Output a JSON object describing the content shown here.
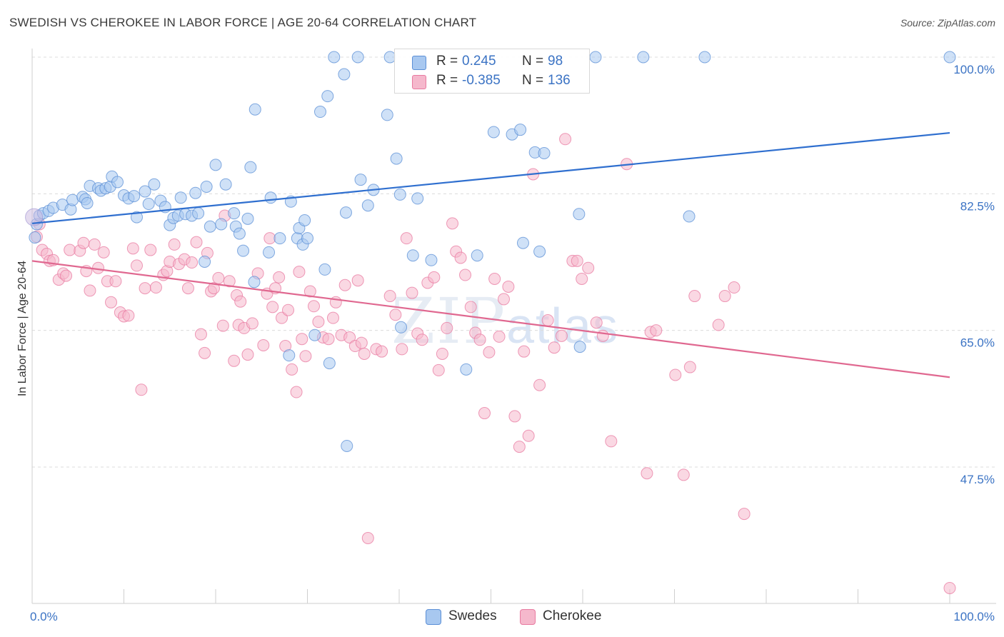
{
  "header": {
    "title": "SWEDISH VS CHEROKEE IN LABOR FORCE | AGE 20-64 CORRELATION CHART",
    "source": "Source: ZipAtlas.com"
  },
  "watermark": {
    "main": "ZIP",
    "sub": "atlas"
  },
  "legend": {
    "rows": [
      {
        "r_label": "R =",
        "r_value": "0.245",
        "n_label": "N =",
        "n_value": "98",
        "color": "#a8c8f0"
      },
      {
        "r_label": "R =",
        "r_value": "-0.385",
        "n_label": "N =",
        "n_value": "136",
        "color": "#f5b8cc"
      }
    ]
  },
  "bottom_legend": [
    {
      "label": "Swedes",
      "color": "#a8c8f0"
    },
    {
      "label": "Cherokee",
      "color": "#f5b8cc"
    }
  ],
  "chart_data": {
    "type": "scatter",
    "title": "SWEDISH VS CHEROKEE IN LABOR FORCE | AGE 20-64 CORRELATION CHART",
    "xlabel": "",
    "ylabel": "In Labor Force | Age 20-64",
    "xlim": [
      0,
      100
    ],
    "ylim": [
      29,
      100.5
    ],
    "x_tick_labels": [
      {
        "value": 0,
        "label": "0.0%"
      },
      {
        "value": 100,
        "label": "100.0%"
      }
    ],
    "y_tick_labels": [
      {
        "value": 100,
        "label": "100.0%"
      },
      {
        "value": 82.5,
        "label": "82.5%"
      },
      {
        "value": 65,
        "label": "65.0%"
      },
      {
        "value": 47.5,
        "label": "47.5%"
      }
    ],
    "grid": true,
    "legend_position": "top-center",
    "series": [
      {
        "name": "Swedes",
        "color": "#a8c8f0",
        "stroke": "#5b8fd6",
        "trend": {
          "x": [
            0,
            100
          ],
          "y": [
            78.7,
            90.3
          ],
          "color": "#2f6fcf"
        },
        "points": [
          [
            0.3,
            76.9
          ],
          [
            0.5,
            78.6
          ],
          [
            0.8,
            79.7
          ],
          [
            1.2,
            80.0
          ],
          [
            1.8,
            80.3
          ],
          [
            2.3,
            80.7
          ],
          [
            3.3,
            81.1
          ],
          [
            4.2,
            80.5
          ],
          [
            4.4,
            81.7
          ],
          [
            5.5,
            82.1
          ],
          [
            5.8,
            81.8
          ],
          [
            6.0,
            81.3
          ],
          [
            6.3,
            83.5
          ],
          [
            7.2,
            83.2
          ],
          [
            7.5,
            82.9
          ],
          [
            8.0,
            83.2
          ],
          [
            8.5,
            83.4
          ],
          [
            8.7,
            84.7
          ],
          [
            9.3,
            84.0
          ],
          [
            10.0,
            82.3
          ],
          [
            10.5,
            81.9
          ],
          [
            11.1,
            82.2
          ],
          [
            11.4,
            79.5
          ],
          [
            12.3,
            82.8
          ],
          [
            12.7,
            81.2
          ],
          [
            13.3,
            83.7
          ],
          [
            14.0,
            81.6
          ],
          [
            14.5,
            80.8
          ],
          [
            15.0,
            78.5
          ],
          [
            15.4,
            79.4
          ],
          [
            15.9,
            79.7
          ],
          [
            16.2,
            82.0
          ],
          [
            16.7,
            79.9
          ],
          [
            17.4,
            79.7
          ],
          [
            17.8,
            82.6
          ],
          [
            18.1,
            80.0
          ],
          [
            18.8,
            73.8
          ],
          [
            19.0,
            83.4
          ],
          [
            19.4,
            78.3
          ],
          [
            20.0,
            86.2
          ],
          [
            20.6,
            78.6
          ],
          [
            21.1,
            83.7
          ],
          [
            22.0,
            80.0
          ],
          [
            22.2,
            78.3
          ],
          [
            22.6,
            77.4
          ],
          [
            23.0,
            75.2
          ],
          [
            23.5,
            79.3
          ],
          [
            23.8,
            85.9
          ],
          [
            24.3,
            93.3
          ],
          [
            24.2,
            71.2
          ],
          [
            25.8,
            75.0
          ],
          [
            26.0,
            82.0
          ],
          [
            27.0,
            76.8
          ],
          [
            28.0,
            61.8
          ],
          [
            28.2,
            81.5
          ],
          [
            28.9,
            76.8
          ],
          [
            29.1,
            78.1
          ],
          [
            29.5,
            76.0
          ],
          [
            29.7,
            79.1
          ],
          [
            30.0,
            76.8
          ],
          [
            30.8,
            64.4
          ],
          [
            31.4,
            93.0
          ],
          [
            31.9,
            72.8
          ],
          [
            32.2,
            95.0
          ],
          [
            32.4,
            60.8
          ],
          [
            32.9,
            100.0
          ],
          [
            34.0,
            97.8
          ],
          [
            34.2,
            80.1
          ],
          [
            34.3,
            50.2
          ],
          [
            35.5,
            100.0
          ],
          [
            35.8,
            84.3
          ],
          [
            36.6,
            81.0
          ],
          [
            37.2,
            83.0
          ],
          [
            38.7,
            92.6
          ],
          [
            39.0,
            100.0
          ],
          [
            39.7,
            87.0
          ],
          [
            40.1,
            82.4
          ],
          [
            40.2,
            65.4
          ],
          [
            41.5,
            74.6
          ],
          [
            42.0,
            81.9
          ],
          [
            43.5,
            74.0
          ],
          [
            47.3,
            60.0
          ],
          [
            48.5,
            74.6
          ],
          [
            50.3,
            90.4
          ],
          [
            52.3,
            90.1
          ],
          [
            53.2,
            90.7
          ],
          [
            53.5,
            76.2
          ],
          [
            54.8,
            87.8
          ],
          [
            55.3,
            75.1
          ],
          [
            55.8,
            87.7
          ],
          [
            59.6,
            79.9
          ],
          [
            59.7,
            62.9
          ],
          [
            61.4,
            100.0
          ],
          [
            66.6,
            100.0
          ],
          [
            71.6,
            79.6
          ],
          [
            73.3,
            100.0
          ],
          [
            100,
            100.0
          ]
        ]
      },
      {
        "name": "Cherokee",
        "color": "#f5b8cc",
        "stroke": "#e87aa0",
        "trend": {
          "x": [
            0,
            100
          ],
          "y": [
            73.9,
            59.0
          ],
          "color": "#e06890"
        },
        "points": [
          [
            0.5,
            77.0
          ],
          [
            0.8,
            78.6
          ],
          [
            1.1,
            75.3
          ],
          [
            1.6,
            74.8
          ],
          [
            1.9,
            73.9
          ],
          [
            2.3,
            74.0
          ],
          [
            2.9,
            71.5
          ],
          [
            3.4,
            72.3
          ],
          [
            3.7,
            72.0
          ],
          [
            4.1,
            75.3
          ],
          [
            5.2,
            75.2
          ],
          [
            5.6,
            76.2
          ],
          [
            5.9,
            72.6
          ],
          [
            6.3,
            70.1
          ],
          [
            6.8,
            76.0
          ],
          [
            7.2,
            73.0
          ],
          [
            7.8,
            75.0
          ],
          [
            8.2,
            71.3
          ],
          [
            8.6,
            68.6
          ],
          [
            9.1,
            71.3
          ],
          [
            9.6,
            67.3
          ],
          [
            10.0,
            66.8
          ],
          [
            10.5,
            66.9
          ],
          [
            11.0,
            75.5
          ],
          [
            11.4,
            73.3
          ],
          [
            11.9,
            57.4
          ],
          [
            12.3,
            70.4
          ],
          [
            12.9,
            75.3
          ],
          [
            13.5,
            70.5
          ],
          [
            14.3,
            72.1
          ],
          [
            14.7,
            72.6
          ],
          [
            15.0,
            73.8
          ],
          [
            15.5,
            76.0
          ],
          [
            16.0,
            73.5
          ],
          [
            16.6,
            74.1
          ],
          [
            17.0,
            70.4
          ],
          [
            17.4,
            73.7
          ],
          [
            17.9,
            76.3
          ],
          [
            18.4,
            64.5
          ],
          [
            18.8,
            62.1
          ],
          [
            19.1,
            74.9
          ],
          [
            19.5,
            70.0
          ],
          [
            19.8,
            70.4
          ],
          [
            20.3,
            71.7
          ],
          [
            20.8,
            65.6
          ],
          [
            21.0,
            79.7
          ],
          [
            21.5,
            71.3
          ],
          [
            22.0,
            61.1
          ],
          [
            22.3,
            69.5
          ],
          [
            22.5,
            65.7
          ],
          [
            22.7,
            68.7
          ],
          [
            23.1,
            65.3
          ],
          [
            23.5,
            61.9
          ],
          [
            24.0,
            65.9
          ],
          [
            24.6,
            72.3
          ],
          [
            25.2,
            63.1
          ],
          [
            25.6,
            69.7
          ],
          [
            25.9,
            76.8
          ],
          [
            26.2,
            68.0
          ],
          [
            26.5,
            70.4
          ],
          [
            26.9,
            71.8
          ],
          [
            27.2,
            66.6
          ],
          [
            27.6,
            63.0
          ],
          [
            27.9,
            67.6
          ],
          [
            28.3,
            60.0
          ],
          [
            28.8,
            57.1
          ],
          [
            29.1,
            72.5
          ],
          [
            29.4,
            63.9
          ],
          [
            29.8,
            61.7
          ],
          [
            30.3,
            70.0
          ],
          [
            30.7,
            68.1
          ],
          [
            31.2,
            66.1
          ],
          [
            31.7,
            64.1
          ],
          [
            32.3,
            63.9
          ],
          [
            32.8,
            66.6
          ],
          [
            33.1,
            68.6
          ],
          [
            33.7,
            64.4
          ],
          [
            34.1,
            70.8
          ],
          [
            34.6,
            64.1
          ],
          [
            35.2,
            63.0
          ],
          [
            35.5,
            71.4
          ],
          [
            35.9,
            63.4
          ],
          [
            36.2,
            62.0
          ],
          [
            36.6,
            38.4
          ],
          [
            37.5,
            62.6
          ],
          [
            38.1,
            62.3
          ],
          [
            39.0,
            69.4
          ],
          [
            39.6,
            67.0
          ],
          [
            40.3,
            62.6
          ],
          [
            40.8,
            76.8
          ],
          [
            41.4,
            69.8
          ],
          [
            42.0,
            64.6
          ],
          [
            42.5,
            63.8
          ],
          [
            43.1,
            71.1
          ],
          [
            43.8,
            71.8
          ],
          [
            44.3,
            59.9
          ],
          [
            44.7,
            62.0
          ],
          [
            45.2,
            65.3
          ],
          [
            45.8,
            78.7
          ],
          [
            46.2,
            75.1
          ],
          [
            46.7,
            74.3
          ],
          [
            47.2,
            72.1
          ],
          [
            47.8,
            68.0
          ],
          [
            48.3,
            64.7
          ],
          [
            48.8,
            63.8
          ],
          [
            49.3,
            54.4
          ],
          [
            49.8,
            62.2
          ],
          [
            50.4,
            71.6
          ],
          [
            50.9,
            64.2
          ],
          [
            51.4,
            69.0
          ],
          [
            51.9,
            70.6
          ],
          [
            52.6,
            54.0
          ],
          [
            53.1,
            50.1
          ],
          [
            53.6,
            62.3
          ],
          [
            54.1,
            51.5
          ],
          [
            54.6,
            85.0
          ],
          [
            55.3,
            58.0
          ],
          [
            56.2,
            66.3
          ],
          [
            56.9,
            62.8
          ],
          [
            57.7,
            64.3
          ],
          [
            58.1,
            89.5
          ],
          [
            58.9,
            73.9
          ],
          [
            59.4,
            73.9
          ],
          [
            59.9,
            71.6
          ],
          [
            60.6,
            73.0
          ],
          [
            61.5,
            66.0
          ],
          [
            62.2,
            64.3
          ],
          [
            63.1,
            50.8
          ],
          [
            64.8,
            86.3
          ],
          [
            67.0,
            46.7
          ],
          [
            67.4,
            64.8
          ],
          [
            68.0,
            65.0
          ],
          [
            70.1,
            59.3
          ],
          [
            71.0,
            46.5
          ],
          [
            71.7,
            60.3
          ],
          [
            72.2,
            69.4
          ],
          [
            74.8,
            65.7
          ],
          [
            75.5,
            69.4
          ],
          [
            76.5,
            70.5
          ],
          [
            77.6,
            41.5
          ],
          [
            100,
            32.0
          ]
        ]
      }
    ]
  }
}
